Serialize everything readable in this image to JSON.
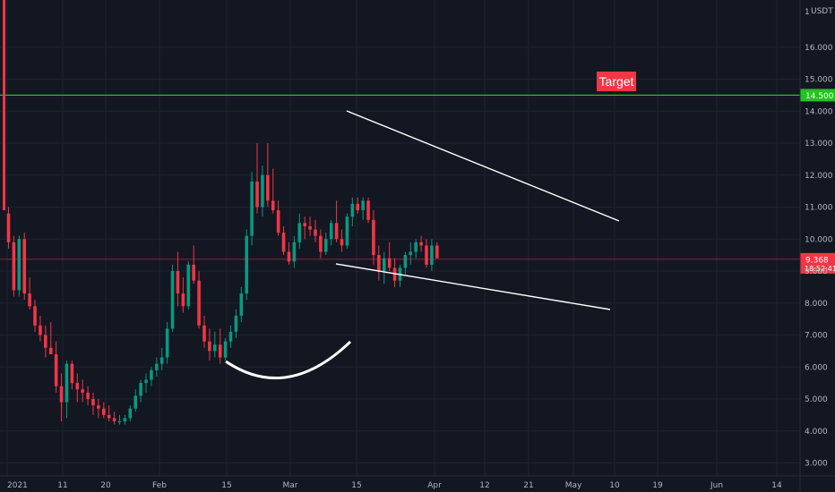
{
  "chart_data": {
    "type": "candlestick",
    "currency": "USDT",
    "x_ticks": [
      "2021",
      "11",
      "20",
      "Feb",
      "15",
      "Mar",
      "15",
      "Apr",
      "12",
      "21",
      "May",
      "10",
      "19",
      "Jun",
      "14"
    ],
    "y_ticks": [
      "3.000",
      "4.000",
      "5.000",
      "6.000",
      "7.000",
      "8.000",
      "9.000",
      "10.000",
      "11.000",
      "12.000",
      "13.000",
      "14.000",
      "15.000",
      "16.000"
    ],
    "y_top_partial_label": "1",
    "ylim": [
      2.6,
      17.35
    ],
    "grid": true,
    "last_price": {
      "value": 9.368,
      "label": "9.368",
      "countdown": "18:52:41",
      "color": "#f23645"
    },
    "target": {
      "value": 14.5,
      "axis_label": "14.500",
      "label": "Target",
      "line_color": "#22c41e",
      "label_color": "#f23645"
    },
    "candles": [
      [
        10.8,
        11.0,
        9.7,
        9.9
      ],
      [
        9.9,
        10.1,
        8.2,
        8.4
      ],
      [
        8.4,
        10.1,
        8.2,
        10.0
      ],
      [
        10.0,
        10.2,
        8.1,
        8.3
      ],
      [
        8.3,
        8.8,
        7.8,
        7.9
      ],
      [
        7.9,
        8.1,
        7.1,
        7.3
      ],
      [
        7.3,
        7.6,
        6.8,
        7.0
      ],
      [
        7.0,
        7.3,
        6.3,
        6.6
      ],
      [
        6.6,
        7.4,
        6.4,
        6.4
      ],
      [
        6.4,
        6.8,
        5.2,
        5.4
      ],
      [
        5.4,
        5.8,
        4.3,
        4.9
      ],
      [
        4.9,
        6.2,
        4.4,
        6.1
      ],
      [
        6.1,
        6.2,
        5.3,
        5.5
      ],
      [
        5.5,
        5.8,
        4.9,
        5.3
      ],
      [
        5.3,
        5.6,
        4.9,
        5.2
      ],
      [
        5.2,
        5.4,
        4.8,
        5.0
      ],
      [
        5.0,
        5.2,
        4.5,
        4.8
      ],
      [
        4.8,
        5.0,
        4.4,
        4.7
      ],
      [
        4.7,
        4.9,
        4.4,
        4.5
      ],
      [
        4.5,
        4.8,
        4.3,
        4.4
      ],
      [
        4.4,
        4.6,
        4.2,
        4.3
      ],
      [
        4.3,
        4.5,
        4.2,
        4.3
      ],
      [
        4.3,
        4.5,
        4.2,
        4.4
      ],
      [
        4.4,
        4.8,
        4.3,
        4.7
      ],
      [
        4.7,
        5.3,
        4.6,
        5.1
      ],
      [
        5.1,
        5.6,
        4.9,
        5.5
      ],
      [
        5.5,
        5.8,
        5.2,
        5.6
      ],
      [
        5.6,
        6.0,
        5.4,
        5.9
      ],
      [
        5.9,
        6.3,
        5.7,
        6.1
      ],
      [
        6.1,
        6.6,
        5.9,
        6.3
      ],
      [
        6.3,
        7.4,
        6.1,
        7.2
      ],
      [
        7.2,
        9.2,
        7.1,
        9.0
      ],
      [
        9.0,
        9.6,
        7.9,
        8.3
      ],
      [
        8.3,
        8.8,
        7.7,
        7.9
      ],
      [
        7.9,
        9.3,
        7.8,
        9.2
      ],
      [
        9.2,
        9.8,
        8.6,
        8.7
      ],
      [
        8.7,
        9.0,
        7.2,
        7.3
      ],
      [
        7.3,
        7.6,
        6.6,
        6.8
      ],
      [
        6.8,
        7.2,
        6.2,
        6.5
      ],
      [
        6.5,
        7.1,
        6.3,
        6.7
      ],
      [
        6.7,
        7.2,
        6.1,
        6.3
      ],
      [
        6.3,
        6.9,
        6.2,
        6.8
      ],
      [
        6.8,
        7.3,
        6.6,
        7.1
      ],
      [
        7.1,
        7.8,
        6.9,
        7.6
      ],
      [
        7.6,
        8.5,
        7.4,
        8.3
      ],
      [
        8.3,
        10.3,
        8.1,
        10.1
      ],
      [
        10.1,
        12.1,
        9.8,
        11.8
      ],
      [
        11.8,
        13.0,
        10.8,
        11.0
      ],
      [
        11.0,
        12.3,
        10.7,
        12.0
      ],
      [
        12.0,
        13.0,
        11.0,
        11.2
      ],
      [
        11.2,
        12.2,
        10.8,
        10.9
      ],
      [
        10.9,
        11.2,
        10.1,
        10.2
      ],
      [
        10.2,
        10.4,
        9.5,
        9.6
      ],
      [
        9.6,
        9.9,
        9.2,
        9.3
      ],
      [
        9.3,
        10.1,
        9.1,
        9.9
      ],
      [
        9.9,
        10.8,
        9.7,
        10.5
      ],
      [
        10.5,
        10.7,
        10.0,
        10.4
      ],
      [
        10.4,
        10.7,
        10.1,
        10.3
      ],
      [
        10.3,
        10.6,
        9.9,
        10.1
      ],
      [
        10.1,
        10.3,
        9.4,
        9.6
      ],
      [
        9.6,
        10.2,
        9.5,
        10.0
      ],
      [
        10.0,
        10.6,
        9.8,
        10.5
      ],
      [
        10.5,
        11.2,
        9.9,
        10.0
      ],
      [
        10.0,
        10.3,
        9.6,
        9.8
      ],
      [
        9.8,
        10.8,
        9.7,
        10.7
      ],
      [
        10.7,
        11.3,
        10.4,
        11.1
      ],
      [
        11.1,
        11.3,
        10.8,
        10.9
      ],
      [
        10.9,
        11.3,
        10.6,
        11.2
      ],
      [
        11.2,
        11.3,
        10.5,
        10.6
      ],
      [
        10.6,
        10.9,
        9.2,
        9.5
      ],
      [
        9.5,
        9.8,
        8.7,
        9.0
      ],
      [
        9.0,
        9.6,
        8.6,
        9.4
      ],
      [
        9.4,
        9.9,
        9.0,
        9.1
      ],
      [
        9.1,
        9.4,
        8.5,
        8.7
      ],
      [
        8.7,
        9.2,
        8.5,
        9.1
      ],
      [
        9.1,
        9.6,
        8.9,
        9.5
      ],
      [
        9.5,
        9.9,
        9.2,
        9.6
      ],
      [
        9.6,
        10.0,
        9.4,
        9.9
      ],
      [
        9.9,
        10.1,
        9.6,
        9.8
      ],
      [
        9.8,
        10.0,
        9.1,
        9.2
      ],
      [
        9.2,
        10.0,
        9.0,
        9.8
      ],
      [
        9.8,
        9.9,
        9.4,
        9.4
      ]
    ]
  }
}
